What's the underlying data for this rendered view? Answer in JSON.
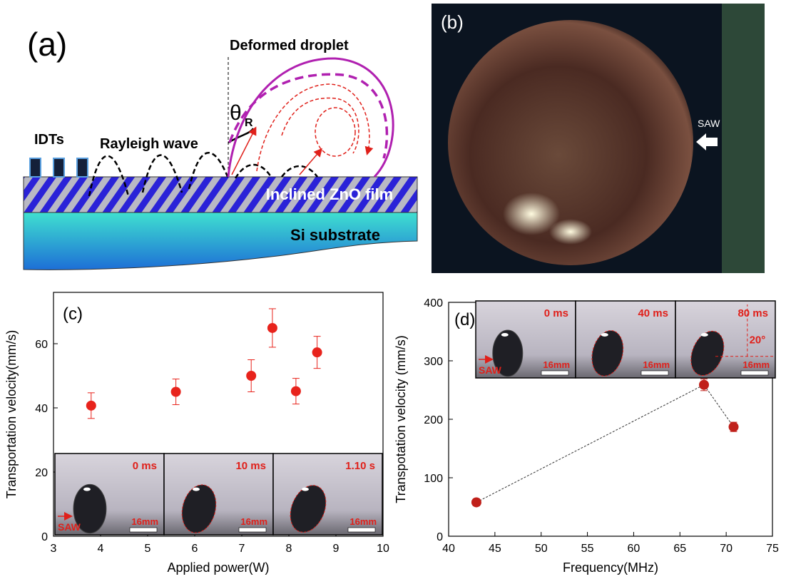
{
  "diagram": {
    "label": "(a)",
    "title": "Deformed droplet",
    "angle_symbol": "θ",
    "angle_subscript": "R",
    "idt_label": "IDTs",
    "wave_label": "Rayleigh wave",
    "film_label": "Inclined ZnO film",
    "substrate_label": "Si substrate"
  },
  "photo": {
    "label": "(b)",
    "arrow_label": "SAW"
  },
  "chart_data": [
    {
      "type": "scatter",
      "panel_label": "(c)",
      "x_label": "Applied power(W)",
      "y_label": "Transportation velocity(mm/s)",
      "x": [
        3.8,
        5.6,
        7.2,
        7.65,
        8.15,
        8.6
      ],
      "values": [
        40.7,
        45,
        50,
        64.9,
        45.2,
        57.3
      ],
      "errors": [
        4,
        4,
        5,
        6,
        4,
        5
      ],
      "color": "#e8231c",
      "connected": false,
      "xlim": [
        3,
        10
      ],
      "ylim": [
        0,
        76
      ],
      "xticks": [
        3,
        4,
        5,
        6,
        7,
        8,
        9,
        10
      ],
      "yticks": [
        0,
        20,
        40,
        60
      ],
      "insets": [
        {
          "time": "0 ms",
          "scale": "16mm"
        },
        {
          "time": "10 ms",
          "scale": "16mm"
        },
        {
          "time": "1.10 s",
          "scale": "16mm"
        }
      ],
      "inset_arrow_label": "SAW"
    },
    {
      "type": "scatter",
      "panel_label": "(d)",
      "x_label": "Frequency(MHz)",
      "y_label": "Transpotation velocity (mm/s)",
      "x": [
        43,
        67.6,
        70.8
      ],
      "values": [
        58,
        259,
        187
      ],
      "errors": [
        6,
        10,
        8
      ],
      "color": "#c0201a",
      "connected": true,
      "xlim": [
        40,
        75
      ],
      "ylim": [
        0,
        400
      ],
      "xticks": [
        40,
        45,
        50,
        55,
        60,
        65,
        70,
        75
      ],
      "yticks": [
        0,
        100,
        200,
        300,
        400
      ],
      "insets": [
        {
          "time": "0 ms",
          "scale": "16mm"
        },
        {
          "time": "40 ms",
          "scale": "16mm"
        },
        {
          "time": "80 ms",
          "scale": "16mm"
        }
      ],
      "inset_arrow_label": "SAW",
      "inset_angle_label": "20°"
    }
  ]
}
